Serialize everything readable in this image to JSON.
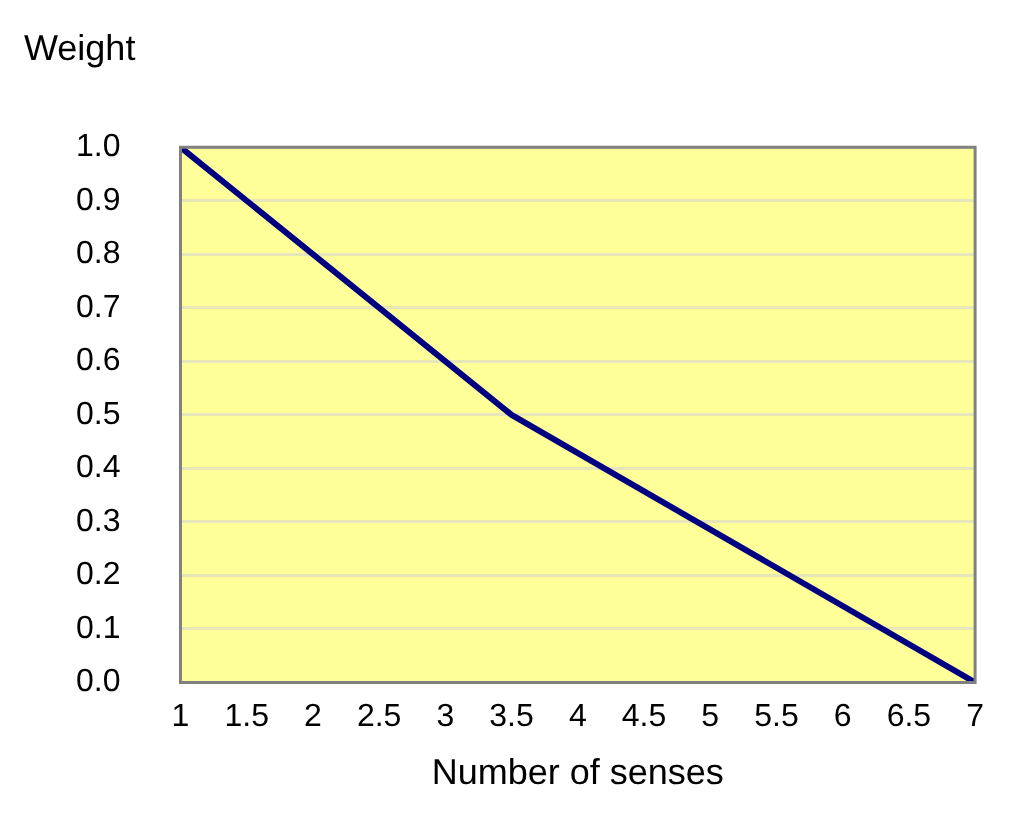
{
  "chart_data": {
    "type": "line",
    "ylabel": "Weight",
    "xlabel": "Number of senses",
    "x": [
      1,
      3.5,
      7
    ],
    "series": [
      {
        "color": "#000080",
        "values": [
          1.0,
          0.5,
          0.0
        ]
      }
    ],
    "xlim": [
      1,
      7
    ],
    "xticks": [
      1,
      1.5,
      2,
      2.5,
      3,
      3.5,
      4,
      4.5,
      5,
      5.5,
      6,
      6.5,
      7
    ],
    "ylim": [
      0,
      1
    ],
    "yticks": [
      {
        "value": 0,
        "label": "0.0"
      },
      {
        "value": 0.1,
        "label": "0.1"
      },
      {
        "value": 0.2,
        "label": "0.2"
      },
      {
        "value": 0.3,
        "label": "0.3"
      },
      {
        "value": 0.4,
        "label": "0.4"
      },
      {
        "value": 0.5,
        "label": "0.5"
      },
      {
        "value": 0.6,
        "label": "0.6"
      },
      {
        "value": 0.7,
        "label": "0.7"
      },
      {
        "value": 0.8,
        "label": "0.8"
      },
      {
        "value": 0.9,
        "label": "0.9"
      },
      {
        "value": 1,
        "label": "1.0"
      }
    ],
    "grid": "y",
    "legend": false,
    "marker": "none",
    "line_style": "solid"
  }
}
